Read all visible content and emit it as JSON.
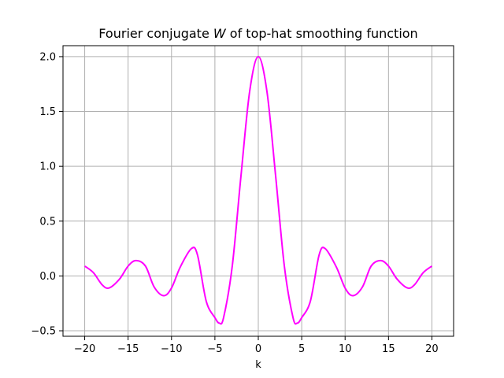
{
  "chart_data": {
    "type": "line",
    "title": "Fourier conjugate W̃ of top-hat smoothing function",
    "title_parts": {
      "prefix": "Fourier conjugate ",
      "symbol": "W",
      "suffix": " of top-hat smoothing function"
    },
    "xlabel": "k",
    "ylabel": "",
    "xlim": [
      -22.5,
      22.5
    ],
    "ylim": [
      -0.55,
      2.1
    ],
    "xticks": [
      -20,
      -15,
      -10,
      -5,
      0,
      5,
      10,
      15,
      20
    ],
    "xtick_labels": [
      "−20",
      "−15",
      "−10",
      "−5",
      "0",
      "5",
      "10",
      "15",
      "20"
    ],
    "yticks": [
      -0.5,
      0.0,
      0.5,
      1.0,
      1.5,
      2.0
    ],
    "ytick_labels": [
      "−0.5",
      "0.0",
      "0.5",
      "1.0",
      "1.5",
      "2.0"
    ],
    "grid": true,
    "series": [
      {
        "color": "#ff00ff",
        "x": [
          -20,
          -19,
          -18,
          -17.2,
          -16,
          -15,
          -14.1,
          -13,
          -12,
          -10.9,
          -10,
          -9,
          -7.7,
          -7,
          -6,
          -5,
          -4.5,
          -4,
          -3,
          -2,
          -1,
          0,
          1,
          2,
          3,
          4,
          4.5,
          5,
          6,
          7,
          7.7,
          9,
          10,
          10.9,
          12,
          13,
          14.1,
          15,
          16,
          17.2,
          18,
          19,
          20
        ],
        "y": [
          0.09,
          0.03,
          -0.08,
          -0.11,
          -0.03,
          0.09,
          0.14,
          0.09,
          -0.1,
          -0.18,
          -0.11,
          0.08,
          0.25,
          0.19,
          -0.23,
          -0.38,
          -0.43,
          -0.38,
          0.09,
          0.91,
          1.68,
          2.0,
          1.68,
          0.91,
          0.09,
          -0.38,
          -0.43,
          -0.38,
          -0.23,
          0.19,
          0.25,
          0.08,
          -0.11,
          -0.18,
          -0.1,
          0.09,
          0.14,
          0.09,
          -0.03,
          -0.11,
          -0.08,
          0.03,
          0.09
        ]
      }
    ]
  }
}
